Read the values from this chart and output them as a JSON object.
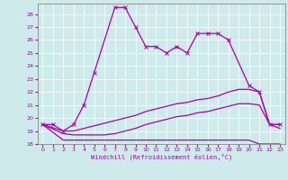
{
  "xlabel": "Windchill (Refroidissement éolien,°C)",
  "xlim": [
    -0.5,
    23.5
  ],
  "ylim": [
    18,
    28.8
  ],
  "yticks": [
    18,
    19,
    20,
    21,
    22,
    23,
    24,
    25,
    26,
    27,
    28
  ],
  "xticks": [
    0,
    1,
    2,
    3,
    4,
    5,
    6,
    7,
    8,
    9,
    10,
    11,
    12,
    13,
    14,
    15,
    16,
    17,
    18,
    19,
    20,
    21,
    22,
    23
  ],
  "bg_color": "#ceeaea",
  "line_color": "#aa00aa",
  "grid_color": "#ffffff",
  "line1_x": [
    0,
    1,
    2,
    3,
    4,
    5,
    7,
    8,
    9,
    10,
    11,
    12,
    13,
    14,
    15,
    16,
    17,
    18,
    20,
    21,
    22,
    23
  ],
  "line1_y": [
    19.5,
    19.5,
    19.0,
    19.5,
    21.0,
    23.5,
    28.5,
    28.5,
    27.0,
    25.5,
    25.5,
    25.0,
    25.5,
    25.0,
    26.5,
    26.5,
    26.5,
    26.0,
    22.5,
    22.0,
    19.5,
    19.5
  ],
  "line2_x": [
    0,
    2,
    3,
    4,
    5,
    6,
    7,
    8,
    9,
    10,
    11,
    12,
    13,
    14,
    15,
    16,
    17,
    18,
    19,
    20,
    21,
    22,
    23
  ],
  "line2_y": [
    19.5,
    19.0,
    19.0,
    19.2,
    19.4,
    19.6,
    19.8,
    20.0,
    20.2,
    20.5,
    20.7,
    20.9,
    21.1,
    21.2,
    21.4,
    21.5,
    21.7,
    22.0,
    22.2,
    22.2,
    22.0,
    19.5,
    19.5
  ],
  "line3_x": [
    0,
    2,
    3,
    4,
    5,
    6,
    7,
    8,
    9,
    10,
    11,
    12,
    13,
    14,
    15,
    16,
    17,
    18,
    19,
    20,
    21,
    22,
    23
  ],
  "line3_y": [
    19.5,
    18.8,
    18.7,
    18.7,
    18.7,
    18.7,
    18.8,
    19.0,
    19.2,
    19.5,
    19.7,
    19.9,
    20.1,
    20.2,
    20.4,
    20.5,
    20.7,
    20.9,
    21.1,
    21.1,
    21.0,
    19.5,
    19.2
  ],
  "line4_x": [
    0,
    2,
    3,
    4,
    5,
    6,
    7,
    8,
    9,
    10,
    11,
    12,
    13,
    14,
    15,
    16,
    17,
    18,
    19,
    20,
    21,
    22,
    23
  ],
  "line4_y": [
    19.5,
    18.3,
    18.3,
    18.3,
    18.3,
    18.3,
    18.3,
    18.3,
    18.3,
    18.3,
    18.3,
    18.3,
    18.3,
    18.3,
    18.3,
    18.3,
    18.3,
    18.3,
    18.3,
    18.3,
    18.0,
    18.0,
    18.0
  ]
}
